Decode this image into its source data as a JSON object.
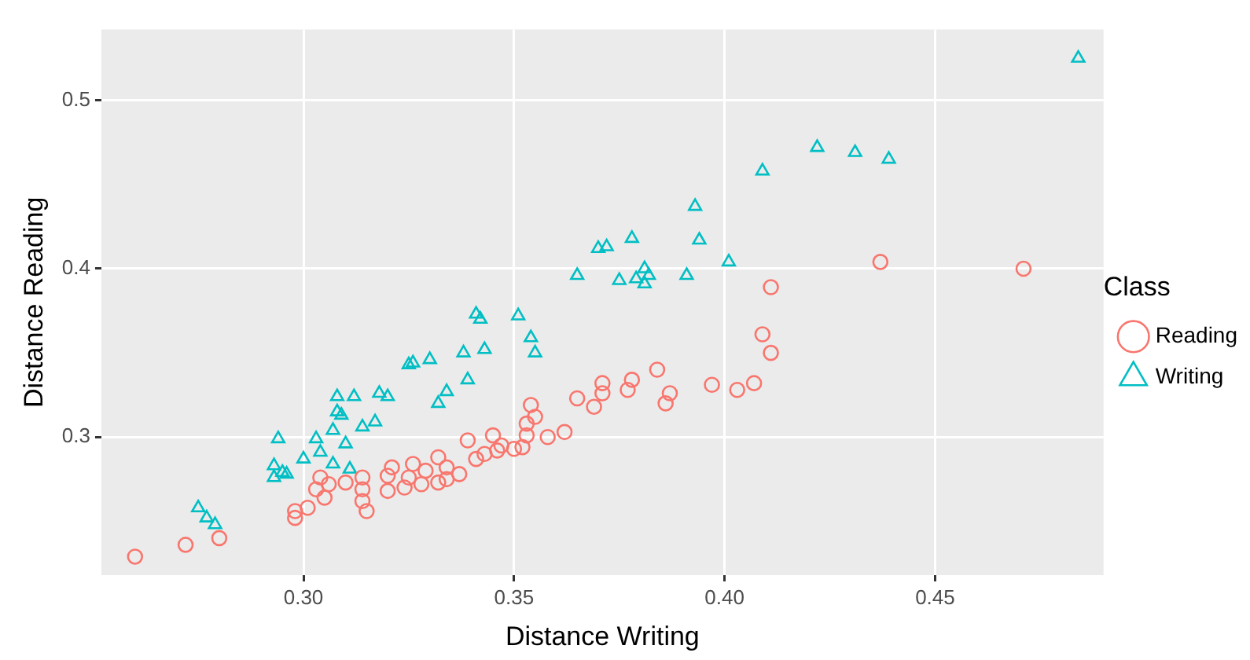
{
  "chart_data": {
    "type": "scatter",
    "xlabel": "Distance Writing",
    "ylabel": "Distance Reading",
    "legend_title": "Class",
    "legend": "right",
    "grid": true,
    "xlim": [
      0.252,
      0.49
    ],
    "ylim": [
      0.218,
      0.542
    ],
    "xticks": [
      {
        "value": 0.3,
        "label": "0.30"
      },
      0.35,
      {
        "value": 0.4,
        "label": "0.40"
      },
      0.45
    ],
    "yticks": [
      0.3,
      0.4,
      0.5
    ],
    "series": [
      {
        "name": "Reading",
        "color": "#f8766d",
        "marker": "circle",
        "x": [
          0.26,
          0.272,
          0.28,
          0.298,
          0.298,
          0.301,
          0.303,
          0.305,
          0.306,
          0.304,
          0.31,
          0.314,
          0.314,
          0.314,
          0.315,
          0.32,
          0.32,
          0.321,
          0.324,
          0.325,
          0.326,
          0.328,
          0.329,
          0.332,
          0.332,
          0.334,
          0.334,
          0.337,
          0.339,
          0.341,
          0.343,
          0.345,
          0.346,
          0.347,
          0.35,
          0.352,
          0.353,
          0.353,
          0.354,
          0.355,
          0.358,
          0.362,
          0.365,
          0.369,
          0.371,
          0.371,
          0.377,
          0.378,
          0.384,
          0.386,
          0.387,
          0.397,
          0.403,
          0.407,
          0.409,
          0.411,
          0.411,
          0.437,
          0.471
        ],
        "values": [
          0.229,
          0.236,
          0.24,
          0.252,
          0.256,
          0.258,
          0.269,
          0.264,
          0.272,
          0.276,
          0.273,
          0.262,
          0.269,
          0.276,
          0.256,
          0.277,
          0.268,
          0.282,
          0.27,
          0.276,
          0.284,
          0.272,
          0.28,
          0.288,
          0.273,
          0.282,
          0.275,
          0.278,
          0.298,
          0.287,
          0.29,
          0.301,
          0.292,
          0.295,
          0.293,
          0.294,
          0.301,
          0.308,
          0.319,
          0.312,
          0.3,
          0.303,
          0.323,
          0.318,
          0.332,
          0.326,
          0.328,
          0.334,
          0.34,
          0.32,
          0.326,
          0.331,
          0.328,
          0.332,
          0.361,
          0.389,
          0.35,
          0.404,
          0.4
        ]
      },
      {
        "name": "Writing",
        "color": "#00bfc4",
        "marker": "triangle",
        "x": [
          0.275,
          0.277,
          0.279,
          0.294,
          0.293,
          0.295,
          0.293,
          0.296,
          0.3,
          0.303,
          0.304,
          0.307,
          0.307,
          0.308,
          0.308,
          0.309,
          0.311,
          0.31,
          0.312,
          0.314,
          0.317,
          0.318,
          0.32,
          0.325,
          0.326,
          0.33,
          0.332,
          0.334,
          0.338,
          0.339,
          0.341,
          0.342,
          0.343,
          0.351,
          0.354,
          0.355,
          0.365,
          0.37,
          0.372,
          0.375,
          0.378,
          0.379,
          0.381,
          0.381,
          0.382,
          0.391,
          0.393,
          0.394,
          0.401,
          0.409,
          0.422,
          0.431,
          0.439,
          0.484
        ],
        "values": [
          0.258,
          0.252,
          0.248,
          0.299,
          0.283,
          0.279,
          0.276,
          0.278,
          0.287,
          0.299,
          0.291,
          0.284,
          0.304,
          0.315,
          0.324,
          0.313,
          0.281,
          0.296,
          0.324,
          0.306,
          0.309,
          0.326,
          0.324,
          0.343,
          0.344,
          0.346,
          0.32,
          0.327,
          0.35,
          0.334,
          0.373,
          0.37,
          0.352,
          0.372,
          0.359,
          0.35,
          0.396,
          0.412,
          0.413,
          0.393,
          0.418,
          0.394,
          0.4,
          0.391,
          0.396,
          0.396,
          0.437,
          0.417,
          0.404,
          0.458,
          0.472,
          0.469,
          0.465,
          0.525
        ]
      }
    ]
  }
}
